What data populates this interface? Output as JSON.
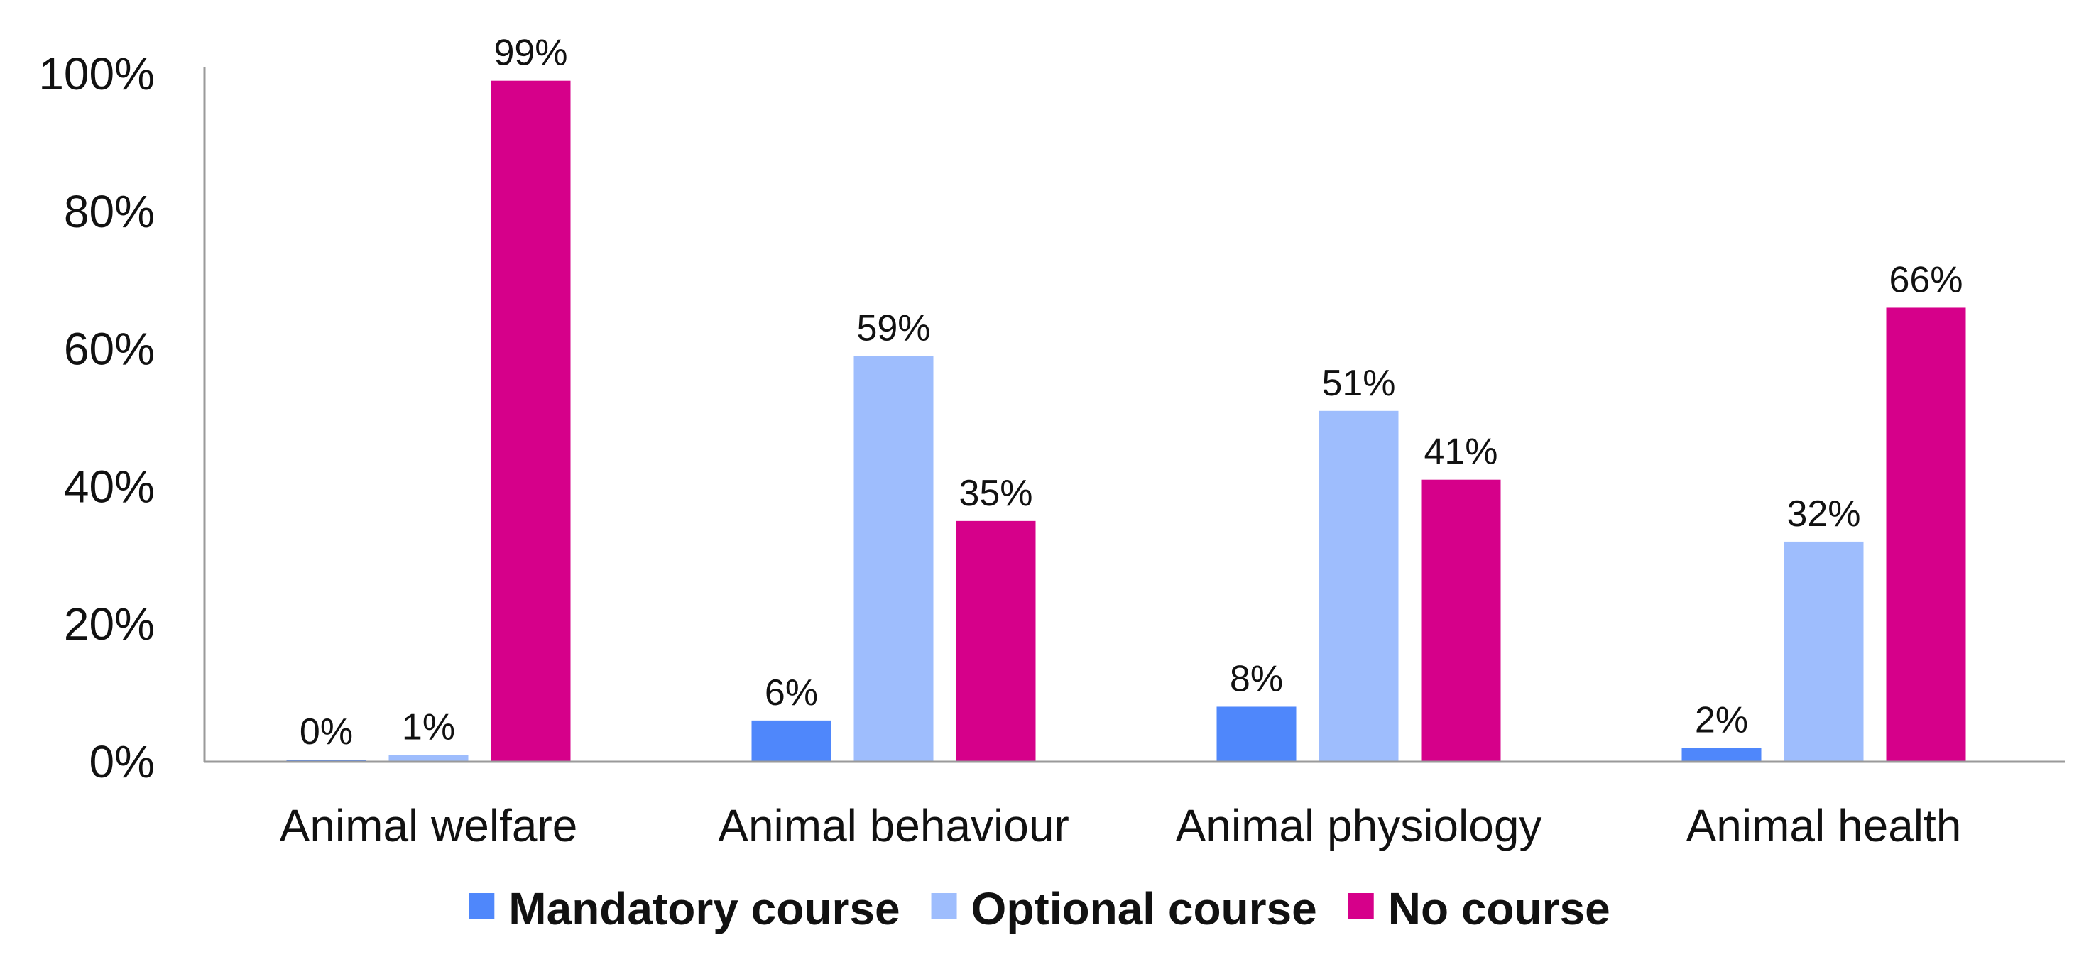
{
  "chart_data": {
    "type": "bar",
    "title": "",
    "xlabel": "",
    "ylabel": "",
    "ylim": [
      0,
      100
    ],
    "value_suffix": "%",
    "yticks": [
      0,
      20,
      40,
      60,
      80,
      100
    ],
    "ytick_labels": [
      "0%",
      "20%",
      "40%",
      "60%",
      "80%",
      "100%"
    ],
    "categories": [
      "Animal welfare",
      "Animal behaviour",
      "Animal physiology",
      "Animal health"
    ],
    "series": [
      {
        "name": "Mandatory course",
        "color": "#4f87fb",
        "values": [
          0,
          6,
          8,
          2
        ],
        "labels": [
          "0%",
          "6%",
          "8%",
          "2%"
        ]
      },
      {
        "name": "Optional course",
        "color": "#9ebdfd",
        "values": [
          1,
          59,
          51,
          32
        ],
        "labels": [
          "1%",
          "59%",
          "51%",
          "32%"
        ]
      },
      {
        "name": "No course",
        "color": "#d6008a",
        "values": [
          99,
          35,
          41,
          66
        ],
        "labels": [
          "99%",
          "35%",
          "41%",
          "66%"
        ]
      }
    ],
    "grid": false,
    "legend_position": "bottom"
  }
}
